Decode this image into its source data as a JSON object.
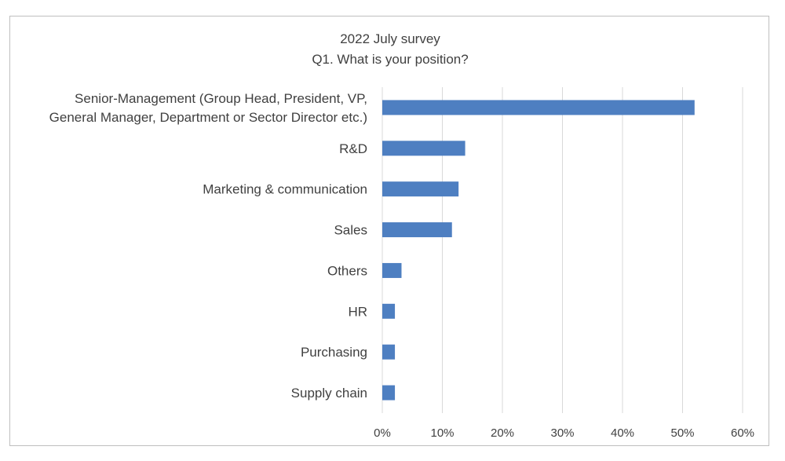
{
  "chart_data": {
    "type": "bar",
    "orientation": "horizontal",
    "title": "2022 July survey",
    "subtitle": "Q1. What is your position?",
    "xlabel": "",
    "ylabel": "",
    "categories": [
      [
        "Senior-Management (Group Head, President, VP,",
        "General Manager, Department or Sector Director etc.)"
      ],
      [
        "R&D"
      ],
      [
        "Marketing & communication"
      ],
      [
        "Sales"
      ],
      [
        "Others"
      ],
      [
        "HR"
      ],
      [
        "Purchasing"
      ],
      [
        "Supply chain"
      ]
    ],
    "values": [
      52,
      13.8,
      12.7,
      11.6,
      3.2,
      2.1,
      2.1,
      2.1
    ],
    "xlim": [
      0,
      60
    ],
    "xticks": [
      0,
      10,
      20,
      30,
      40,
      50,
      60
    ],
    "tick_suffix": "%",
    "grid": "vertical",
    "legend": "none",
    "bar_color": "#4e7fc1",
    "grid_color": "#d9d9d9",
    "text_color": "#404040"
  }
}
